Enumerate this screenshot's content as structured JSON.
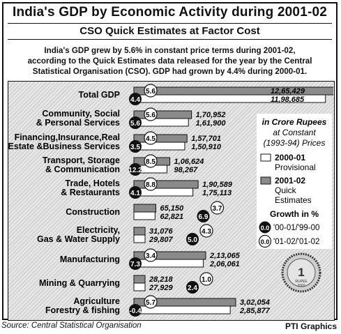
{
  "title": "India's GDP by Economic Activity during 2001-02",
  "subtitle": "CSO Quick Estimates at Factor Cost",
  "summary": [
    "India's GDP grew by 5.6% in constant price terms during 2001-02,",
    "according to the Quick Estimates data released for the year by the Central",
    "Statistical Organisation (CSO). GDP had grown by 4.4% during 2000-01."
  ],
  "source": "Source: Central Statistical Organisation",
  "credit": "PTI Graphics",
  "legend": {
    "unit_line1": "in Crore Rupees",
    "unit_line2": "at Constant",
    "unit_line3": "(1993-94) Prices",
    "provisional_label": [
      "2000-01",
      "Provisional"
    ],
    "quick_label": [
      "2001-02",
      "Quick",
      "Estimates"
    ],
    "growth_title": "Growth in %",
    "growth_prev_label": "'00-01/'99-00",
    "growth_curr_label": "'01-02/'01-02",
    "badge_sample": "0.0"
  },
  "coin_text": [
    "1",
    "RUPEE",
    "2002"
  ],
  "chart_data": {
    "type": "bar",
    "orientation": "horizontal",
    "series": [
      {
        "name": "2001-02 Quick Estimates",
        "color": "#8a8a8a"
      },
      {
        "name": "2000-01 Provisional",
        "color": "#ffffff"
      }
    ],
    "categories": [
      {
        "label": [
          "Total GDP"
        ],
        "v2001": 1265429,
        "v2000": 1198685,
        "v2001_label": "12,65,429",
        "v2000_label": "11,98,685",
        "growth_prev": "4.4",
        "growth_curr": "5.6"
      },
      {
        "label": [
          "Community, Social",
          "& Personal Services"
        ],
        "v2001": 170952,
        "v2000": 161900,
        "v2001_label": "1,70,952",
        "v2000_label": "1,61,900",
        "growth_prev": "5.6",
        "growth_curr": "5.6"
      },
      {
        "label": [
          "Financing,Insurance,Real",
          "Estate &Business Services"
        ],
        "v2001": 157701,
        "v2000": 150910,
        "v2001_label": "1,57,701",
        "v2000_label": "1,50,910",
        "growth_prev": "3.5",
        "growth_curr": "4.5"
      },
      {
        "label": [
          "Transport, Storage",
          "& Communication"
        ],
        "v2001": 106624,
        "v2000": 98267,
        "v2001_label": "1,06,624",
        "v2000_label": "98,267",
        "growth_prev": "12.2",
        "growth_curr": "8.5"
      },
      {
        "label": [
          "Trade, Hotels",
          "& Restaurants"
        ],
        "v2001": 190589,
        "v2000": 175113,
        "v2001_label": "1,90,589",
        "v2000_label": "1,75,113",
        "growth_prev": "4.1",
        "growth_curr": "8.8"
      },
      {
        "label": [
          "Construction"
        ],
        "v2001": 65150,
        "v2000": 62821,
        "v2001_label": "65,150",
        "v2000_label": "62,821",
        "growth_prev": "6.9",
        "growth_curr": "3.7"
      },
      {
        "label": [
          "Electricity,",
          "Gas & Water Supply"
        ],
        "v2001": 31076,
        "v2000": 29807,
        "v2001_label": "31,076",
        "v2000_label": "29,807",
        "growth_prev": "5.0",
        "growth_curr": "4.3"
      },
      {
        "label": [
          "Manufacturing"
        ],
        "v2001": 213065,
        "v2000": 206061,
        "v2001_label": "2,13,065",
        "v2000_label": "2,06,061",
        "growth_prev": "7.3",
        "growth_curr": "3.4"
      },
      {
        "label": [
          "Mining & Quarrying"
        ],
        "v2001": 28218,
        "v2000": 27929,
        "v2001_label": "28,218",
        "v2000_label": "27,929",
        "growth_prev": "2.4",
        "growth_curr": "1.0"
      },
      {
        "label": [
          "Agriculture",
          "Forestry & fishing"
        ],
        "v2001": 302054,
        "v2000": 285877,
        "v2001_label": "3,02,054",
        "v2000_label": "2,85,877",
        "growth_prev": "-0.4",
        "growth_curr": "5.7"
      }
    ],
    "scale_note": "sector bars on common scale; Total GDP bar drawn full width"
  }
}
